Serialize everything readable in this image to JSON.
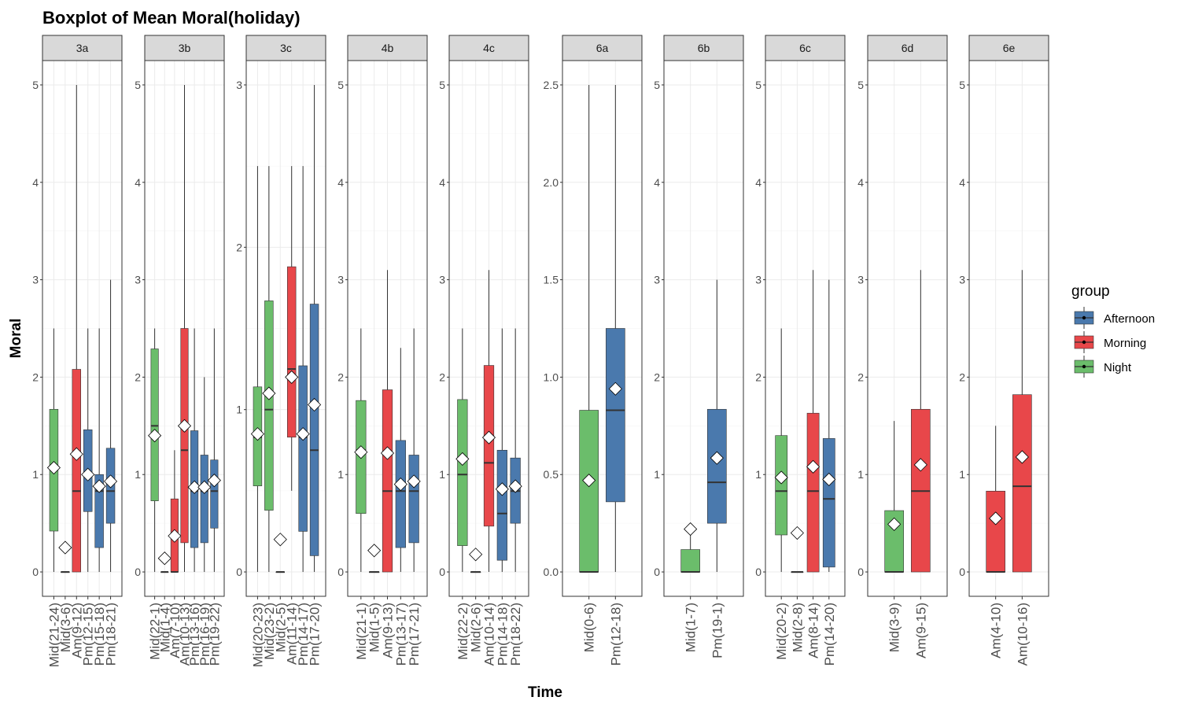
{
  "chart_data": {
    "type": "boxplot",
    "title": "Boxplot of Mean Moral(holiday)",
    "xlabel": "Time",
    "ylabel": "Moral",
    "grid": true,
    "legend": {
      "title": "group",
      "placement": "right",
      "entries": [
        {
          "name": "Afternoon",
          "color": "#4a79ad"
        },
        {
          "name": "Morning",
          "color": "#e8474a"
        },
        {
          "name": "Night",
          "color": "#6bbd6b"
        }
      ]
    },
    "panels": [
      {
        "name": "3a",
        "ylim": [
          -0.25,
          5.25
        ],
        "yticks": [
          0,
          1,
          2,
          3,
          4,
          5
        ],
        "ytick_labels": [
          "0",
          "1",
          "2",
          "3",
          "4",
          "5"
        ],
        "boxes": [
          {
            "label": "Mid(21-24)",
            "group": "Night",
            "q1": 0.42,
            "median": 1.05,
            "q3": 1.67,
            "mean": 1.07,
            "wlo": 0,
            "whi": 2.5
          },
          {
            "label": "Mid(3-6)",
            "group": "Night",
            "q1": 0,
            "median": 0,
            "q3": 0,
            "mean": 0.25,
            "wlo": 0,
            "whi": 0
          },
          {
            "label": "Am(9-12)",
            "group": "Morning",
            "q1": 0,
            "median": 0.83,
            "q3": 2.08,
            "mean": 1.21,
            "wlo": 0,
            "whi": 5
          },
          {
            "label": "Pm(12-15)",
            "group": "Afternoon",
            "q1": 0.62,
            "median": 1.0,
            "q3": 1.46,
            "mean": 1.0,
            "wlo": 0,
            "whi": 2.5
          },
          {
            "label": "Pm(15-18)",
            "group": "Afternoon",
            "q1": 0.25,
            "median": 0.83,
            "q3": 1.0,
            "mean": 0.88,
            "wlo": 0,
            "whi": 2.5
          },
          {
            "label": "Pm(18-21)",
            "group": "Afternoon",
            "q1": 0.5,
            "median": 0.83,
            "q3": 1.27,
            "mean": 0.93,
            "wlo": 0,
            "whi": 3
          }
        ]
      },
      {
        "name": "3b",
        "ylim": [
          -0.25,
          5.25
        ],
        "yticks": [
          0,
          1,
          2,
          3,
          4,
          5
        ],
        "ytick_labels": [
          "0",
          "1",
          "2",
          "3",
          "4",
          "5"
        ],
        "boxes": [
          {
            "label": "Mid(22-1)",
            "group": "Night",
            "q1": 0.73,
            "median": 1.5,
            "q3": 2.29,
            "mean": 1.4,
            "wlo": 0,
            "whi": 2.5
          },
          {
            "label": "Mid(1-4)",
            "group": "Night",
            "q1": 0,
            "median": 0,
            "q3": 0,
            "mean": 0.14,
            "wlo": 0,
            "whi": 0
          },
          {
            "label": "Am(7-10)",
            "group": "Morning",
            "q1": 0,
            "median": 0,
            "q3": 0.75,
            "mean": 0.37,
            "wlo": 0,
            "whi": 1.25
          },
          {
            "label": "Am(10-13)",
            "group": "Morning",
            "q1": 0.3,
            "median": 1.25,
            "q3": 2.5,
            "mean": 1.5,
            "wlo": 0,
            "whi": 5
          },
          {
            "label": "Pm(13-16)",
            "group": "Afternoon",
            "q1": 0.25,
            "median": 0.83,
            "q3": 1.45,
            "mean": 0.87,
            "wlo": 0,
            "whi": 2.5
          },
          {
            "label": "Pm(16-19)",
            "group": "Afternoon",
            "q1": 0.3,
            "median": 0.83,
            "q3": 1.2,
            "mean": 0.87,
            "wlo": 0,
            "whi": 2.0
          },
          {
            "label": "Pm(19-22)",
            "group": "Afternoon",
            "q1": 0.45,
            "median": 0.83,
            "q3": 1.15,
            "mean": 0.94,
            "wlo": 0,
            "whi": 2.5
          }
        ]
      },
      {
        "name": "3c",
        "ylim": [
          -0.15,
          3.15
        ],
        "yticks": [
          0,
          1,
          2,
          3
        ],
        "ytick_labels": [
          "0",
          "1",
          "2",
          "3"
        ],
        "boxes": [
          {
            "label": "Mid(20-23)",
            "group": "Night",
            "q1": 0.53,
            "median": 0.83,
            "q3": 1.14,
            "mean": 0.85,
            "wlo": 0,
            "whi": 2.5
          },
          {
            "label": "Mid(23-2)",
            "group": "Night",
            "q1": 0.38,
            "median": 1.0,
            "q3": 1.67,
            "mean": 1.1,
            "wlo": 0,
            "whi": 2.5
          },
          {
            "label": "Mid(2-5)",
            "group": "Night",
            "q1": 0,
            "median": 0,
            "q3": 0,
            "mean": 0.2,
            "wlo": 0,
            "whi": 0
          },
          {
            "label": "Am(11-14)",
            "group": "Morning",
            "q1": 0.83,
            "median": 1.25,
            "q3": 1.88,
            "mean": 1.2,
            "wlo": 0.5,
            "whi": 2.5
          },
          {
            "label": "Pm(14-17)",
            "group": "Afternoon",
            "q1": 0.25,
            "median": 0.83,
            "q3": 1.27,
            "mean": 0.85,
            "wlo": 0,
            "whi": 2.5
          },
          {
            "label": "Pm(17-20)",
            "group": "Afternoon",
            "q1": 0.1,
            "median": 0.75,
            "q3": 1.65,
            "mean": 1.03,
            "wlo": 0,
            "whi": 3
          }
        ]
      },
      {
        "name": "4b",
        "ylim": [
          -0.25,
          5.25
        ],
        "yticks": [
          0,
          1,
          2,
          3,
          4,
          5
        ],
        "ytick_labels": [
          "0",
          "1",
          "2",
          "3",
          "4",
          "5"
        ],
        "boxes": [
          {
            "label": "Mid(21-1)",
            "group": "Night",
            "q1": 0.6,
            "median": 1.25,
            "q3": 1.76,
            "mean": 1.23,
            "wlo": 0,
            "whi": 2.5
          },
          {
            "label": "Mid(1-5)",
            "group": "Night",
            "q1": 0,
            "median": 0,
            "q3": 0,
            "mean": 0.22,
            "wlo": 0,
            "whi": 0
          },
          {
            "label": "Am(9-13)",
            "group": "Morning",
            "q1": 0,
            "median": 0.83,
            "q3": 1.87,
            "mean": 1.22,
            "wlo": 0,
            "whi": 3.1
          },
          {
            "label": "Pm(13-17)",
            "group": "Afternoon",
            "q1": 0.25,
            "median": 0.83,
            "q3": 1.35,
            "mean": 0.9,
            "wlo": 0,
            "whi": 2.3
          },
          {
            "label": "Pm(17-21)",
            "group": "Afternoon",
            "q1": 0.3,
            "median": 0.83,
            "q3": 1.2,
            "mean": 0.93,
            "wlo": 0,
            "whi": 2.5
          }
        ]
      },
      {
        "name": "4c",
        "ylim": [
          -0.25,
          5.25
        ],
        "yticks": [
          0,
          1,
          2,
          3,
          4,
          5
        ],
        "ytick_labels": [
          "0",
          "1",
          "2",
          "3",
          "4",
          "5"
        ],
        "boxes": [
          {
            "label": "Mid(22-2)",
            "group": "Night",
            "q1": 0.27,
            "median": 1.0,
            "q3": 1.77,
            "mean": 1.16,
            "wlo": 0,
            "whi": 2.5
          },
          {
            "label": "Mid(2-6)",
            "group": "Night",
            "q1": 0,
            "median": 0,
            "q3": 0,
            "mean": 0.18,
            "wlo": 0,
            "whi": 0
          },
          {
            "label": "Am(10-14)",
            "group": "Morning",
            "q1": 0.47,
            "median": 1.12,
            "q3": 2.12,
            "mean": 1.38,
            "wlo": 0,
            "whi": 3.1
          },
          {
            "label": "Pm(14-18)",
            "group": "Afternoon",
            "q1": 0.12,
            "median": 0.6,
            "q3": 1.25,
            "mean": 0.85,
            "wlo": 0,
            "whi": 2.5
          },
          {
            "label": "Pm(18-22)",
            "group": "Afternoon",
            "q1": 0.5,
            "median": 0.83,
            "q3": 1.17,
            "mean": 0.88,
            "wlo": 0,
            "whi": 2.5
          }
        ]
      },
      {
        "name": "6a",
        "ylim": [
          -0.125,
          2.625
        ],
        "yticks": [
          0,
          0.5,
          1,
          1.5,
          2,
          2.5
        ],
        "ytick_labels": [
          "0.0",
          "0.5",
          "1.0",
          "1.5",
          "2.0",
          "2.5"
        ],
        "boxes": [
          {
            "label": "Mid(0-6)",
            "group": "Night",
            "q1": 0,
            "median": 0,
            "q3": 0.83,
            "mean": 0.47,
            "wlo": 0,
            "whi": 2.5
          },
          {
            "label": "Pm(12-18)",
            "group": "Afternoon",
            "q1": 0.36,
            "median": 0.83,
            "q3": 1.25,
            "mean": 0.94,
            "wlo": 0,
            "whi": 2.5
          }
        ]
      },
      {
        "name": "6b",
        "ylim": [
          -0.25,
          5.25
        ],
        "yticks": [
          0,
          1,
          2,
          3,
          4,
          5
        ],
        "ytick_labels": [
          "0",
          "1",
          "2",
          "3",
          "4",
          "5"
        ],
        "boxes": [
          {
            "label": "Mid(1-7)",
            "group": "Night",
            "q1": 0,
            "median": 0,
            "q3": 0.23,
            "mean": 0.44,
            "wlo": 0,
            "whi": 0.5
          },
          {
            "label": "Pm(19-1)",
            "group": "Afternoon",
            "q1": 0.5,
            "median": 0.92,
            "q3": 1.67,
            "mean": 1.17,
            "wlo": 0,
            "whi": 3
          }
        ]
      },
      {
        "name": "6c",
        "ylim": [
          -0.25,
          5.25
        ],
        "yticks": [
          0,
          1,
          2,
          3,
          4,
          5
        ],
        "ytick_labels": [
          "0",
          "1",
          "2",
          "3",
          "4",
          "5"
        ],
        "boxes": [
          {
            "label": "Mid(20-2)",
            "group": "Night",
            "q1": 0.38,
            "median": 0.83,
            "q3": 1.4,
            "mean": 0.97,
            "wlo": 0,
            "whi": 2.5
          },
          {
            "label": "Mid(2-8)",
            "group": "Night",
            "q1": 0,
            "median": 0,
            "q3": 0,
            "mean": 0.4,
            "wlo": 0,
            "whi": 0
          },
          {
            "label": "Am(8-14)",
            "group": "Morning",
            "q1": 0,
            "median": 0.83,
            "q3": 1.63,
            "mean": 1.08,
            "wlo": 0,
            "whi": 3.1
          },
          {
            "label": "Pm(14-20)",
            "group": "Afternoon",
            "q1": 0.05,
            "median": 0.75,
            "q3": 1.37,
            "mean": 0.95,
            "wlo": 0,
            "whi": 3
          }
        ]
      },
      {
        "name": "6d",
        "ylim": [
          -0.25,
          5.25
        ],
        "yticks": [
          0,
          1,
          2,
          3,
          4,
          5
        ],
        "ytick_labels": [
          "0",
          "1",
          "2",
          "3",
          "4",
          "5"
        ],
        "boxes": [
          {
            "label": "Mid(3-9)",
            "group": "Night",
            "q1": 0,
            "median": 0,
            "q3": 0.63,
            "mean": 0.49,
            "wlo": 0,
            "whi": 1.55
          },
          {
            "label": "Am(9-15)",
            "group": "Morning",
            "q1": 0,
            "median": 0.83,
            "q3": 1.67,
            "mean": 1.1,
            "wlo": 0,
            "whi": 3.1
          }
        ]
      },
      {
        "name": "6e",
        "ylim": [
          -0.25,
          5.25
        ],
        "yticks": [
          0,
          1,
          2,
          3,
          4,
          5
        ],
        "ytick_labels": [
          "0",
          "1",
          "2",
          "3",
          "4",
          "5"
        ],
        "boxes": [
          {
            "label": "Am(4-10)",
            "group": "Morning",
            "q1": 0,
            "median": 0,
            "q3": 0.83,
            "mean": 0.55,
            "wlo": 0,
            "whi": 1.5
          },
          {
            "label": "Am(10-16)",
            "group": "Morning",
            "q1": 0,
            "median": 0.88,
            "q3": 1.82,
            "mean": 1.18,
            "wlo": 0,
            "whi": 3.1
          }
        ]
      }
    ]
  }
}
